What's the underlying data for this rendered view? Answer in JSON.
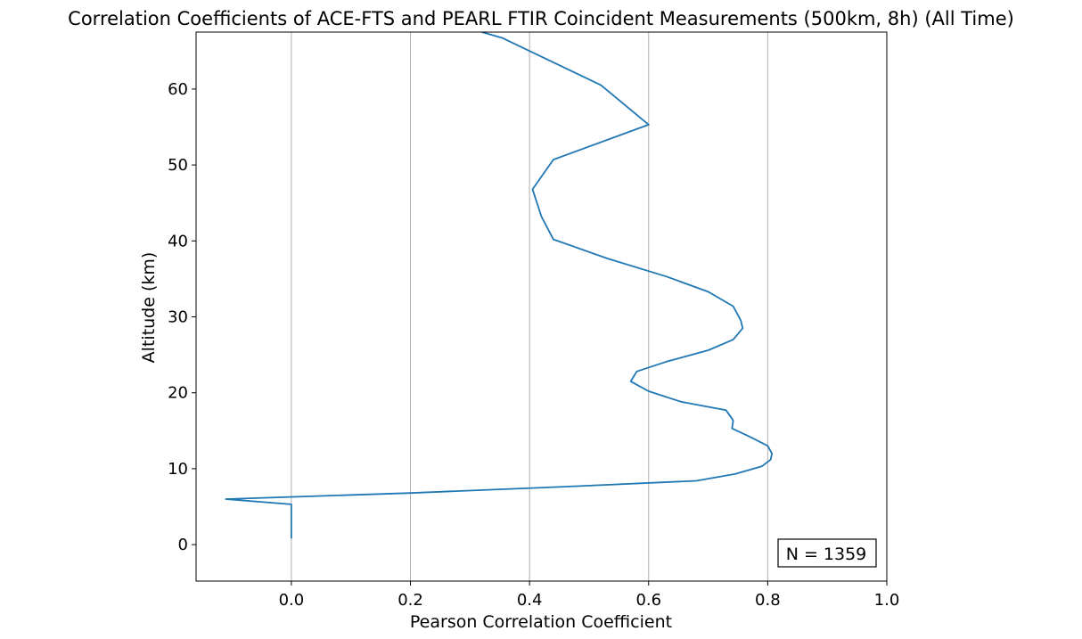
{
  "chart_data": {
    "type": "line",
    "title": "Correlation Coefficients of ACE-FTS and PEARL FTIR Coincident Measurements (500km, 8h) (All Time)",
    "xlabel": "Pearson Correlation Coefficient",
    "ylabel": "Altitude (km)",
    "xlim": [
      -0.16,
      1.0
    ],
    "ylim": [
      -4.8,
      67.5
    ],
    "xticks": [
      0.0,
      0.2,
      0.4,
      0.6,
      0.8,
      1.0
    ],
    "xtick_labels": [
      "0.0",
      "0.2",
      "0.4",
      "0.6",
      "0.8",
      "1.0"
    ],
    "yticks": [
      0,
      10,
      20,
      30,
      40,
      50,
      60
    ],
    "ytick_labels": [
      "0",
      "10",
      "20",
      "30",
      "40",
      "50",
      "60"
    ],
    "grid": "x-major",
    "line_color": "#1f77b4",
    "annotation": "N = 1359",
    "annotation_position": "bottom-right",
    "series": [
      {
        "x": [
          0.0,
          0.0,
          -0.11,
          0.2,
          0.48,
          0.68,
          0.745,
          0.79,
          0.805,
          0.807,
          0.8,
          0.77,
          0.74,
          0.742,
          0.74,
          0.73,
          0.655,
          0.6,
          0.57,
          0.58,
          0.63,
          0.7,
          0.742,
          0.758,
          0.755,
          0.742,
          0.7,
          0.63,
          0.53,
          0.44,
          0.42,
          0.405,
          0.44,
          0.6,
          0.52,
          0.355,
          0.32
        ],
        "y": [
          0.8,
          5.3,
          6.0,
          6.8,
          7.7,
          8.4,
          9.3,
          10.3,
          11.2,
          12.0,
          13.0,
          14.2,
          15.3,
          16.3,
          16.6,
          17.7,
          18.8,
          20.2,
          21.5,
          22.8,
          24.1,
          25.6,
          27.0,
          28.5,
          29.5,
          31.4,
          33.3,
          35.3,
          37.7,
          40.2,
          43.2,
          46.8,
          50.7,
          55.3,
          60.5,
          66.7,
          67.5
        ]
      }
    ]
  }
}
